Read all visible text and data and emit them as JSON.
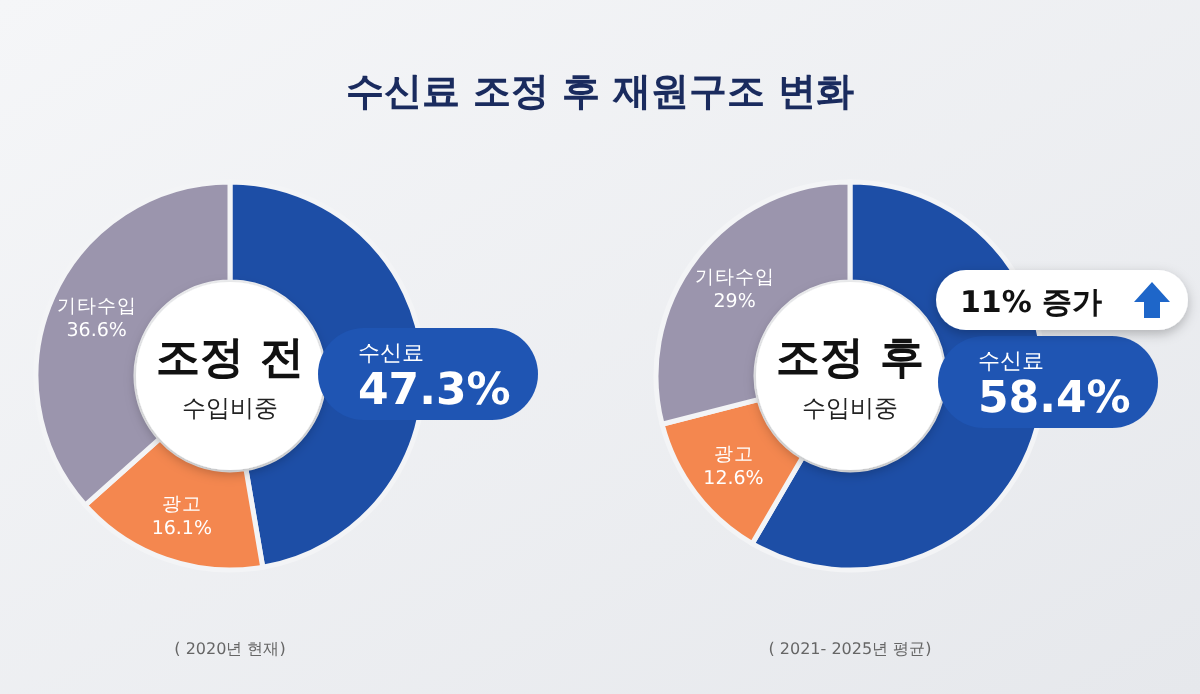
{
  "chart_data": [
    {
      "type": "donut",
      "title": "수신료 조정 후 재원구조 변화",
      "subtitle": "조정 전",
      "categories": [
        "수신료",
        "광고",
        "기타수입"
      ],
      "values": [
        47.3,
        16.1,
        36.6
      ],
      "colors": [
        "#1d4ea6",
        "#f4874f",
        "#9b95ad"
      ],
      "value_labels": [
        "47.3%",
        "16.1%",
        "36.6%"
      ],
      "annotations": [
        "수입비중",
        "( 2020년 현재)"
      ]
    },
    {
      "type": "donut",
      "subtitle": "조정 후",
      "categories": [
        "수신료",
        "광고",
        "기타수입"
      ],
      "values": [
        58.4,
        12.6,
        29
      ],
      "colors": [
        "#1d4ea6",
        "#f4874f",
        "#9b95ad"
      ],
      "value_labels": [
        "58.4%",
        "12.6%",
        "29%"
      ],
      "annotations": [
        "수입비중",
        "( 2021- 2025년 평균)",
        "11% 증가"
      ]
    }
  ]
}
